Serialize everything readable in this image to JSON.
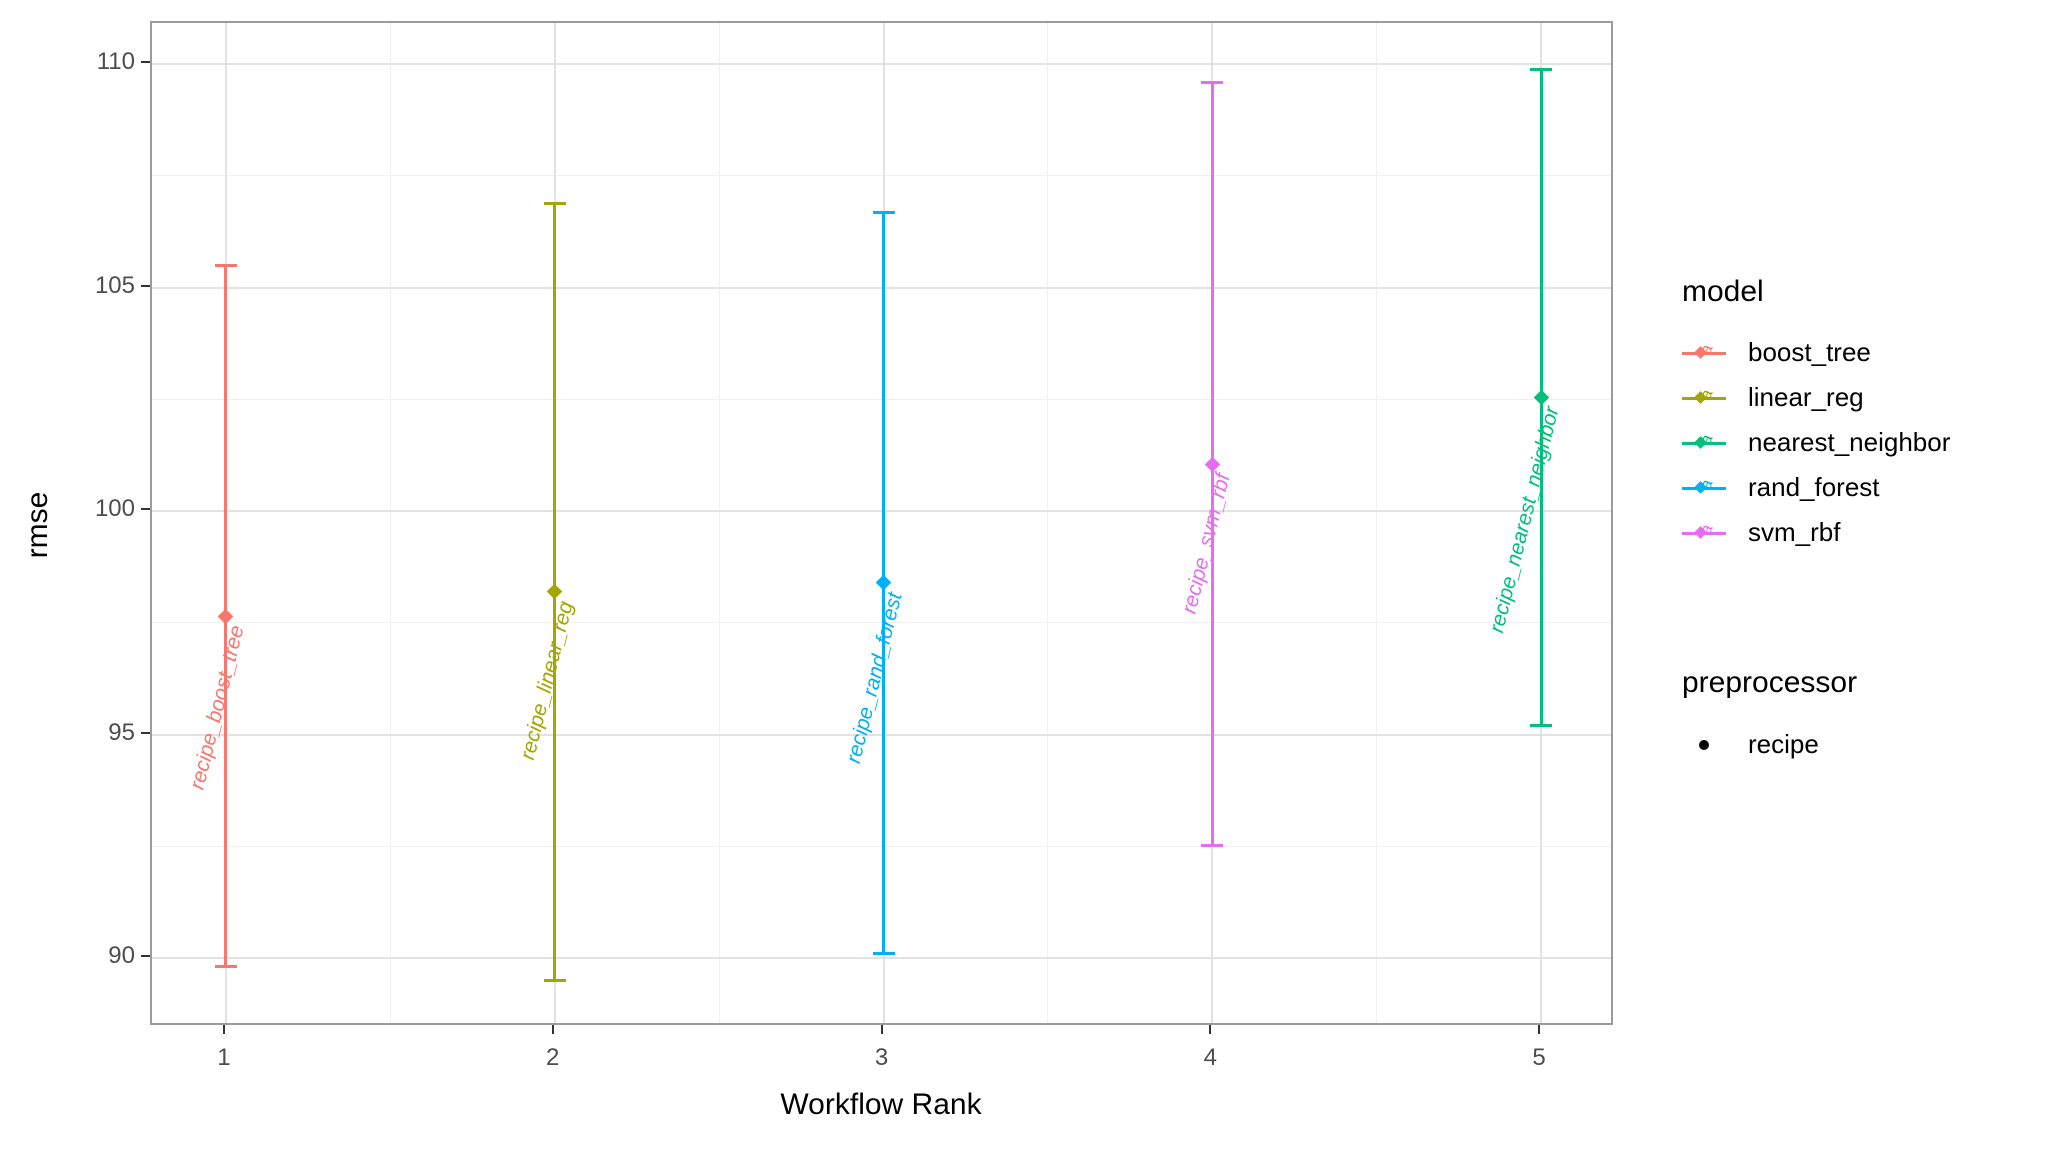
{
  "chart_data": {
    "type": "scatter",
    "subtype": "points-with-errorbars",
    "title": "",
    "xlabel": "Workflow Rank",
    "ylabel": "rmse",
    "xlim": [
      0.775,
      5.225
    ],
    "ylim": [
      88.46,
      110.92
    ],
    "grid": true,
    "legend_position": "right",
    "x_major_ticks": [
      1,
      2,
      3,
      4,
      5
    ],
    "y_major_ticks": [
      90,
      95,
      100,
      105,
      110
    ],
    "x_minor_gridlines": [
      1.5,
      2.5,
      3.5,
      4.5
    ],
    "y_minor_gridlines": [
      92.5,
      97.5,
      102.5,
      107.5
    ],
    "series": [
      {
        "rank": 1,
        "model": "boost_tree",
        "workflow_label": "recipe_boost_tree",
        "mean": 97.65,
        "lower": 89.8,
        "upper": 105.5,
        "color": "#F8766D"
      },
      {
        "rank": 2,
        "model": "linear_reg",
        "workflow_label": "recipe_linear_reg",
        "mean": 98.2,
        "lower": 89.5,
        "upper": 106.9,
        "color": "#A3A500"
      },
      {
        "rank": 3,
        "model": "rand_forest",
        "workflow_label": "recipe_rand_forest",
        "mean": 98.4,
        "lower": 90.1,
        "upper": 106.7,
        "color": "#00B0F6"
      },
      {
        "rank": 4,
        "model": "svm_rbf",
        "workflow_label": "recipe_svm_rbf",
        "mean": 101.05,
        "lower": 92.5,
        "upper": 109.6,
        "color": "#E76BF3"
      },
      {
        "rank": 5,
        "model": "nearest_neighbor",
        "workflow_label": "recipe_nearest_neighbor",
        "mean": 102.55,
        "lower": 95.2,
        "upper": 109.9,
        "color": "#00BF7D"
      }
    ]
  },
  "axes": {
    "x_title": "Workflow Rank",
    "y_title": "rmse",
    "x_tick_labels": [
      "1",
      "2",
      "3",
      "4",
      "5"
    ],
    "y_tick_labels": [
      "90",
      "95",
      "100",
      "105",
      "110"
    ]
  },
  "legend": {
    "model_title": "model",
    "model_items": [
      {
        "label": "boost_tree",
        "color": "#F8766D"
      },
      {
        "label": "linear_reg",
        "color": "#A3A500"
      },
      {
        "label": "nearest_neighbor",
        "color": "#00BF7D"
      },
      {
        "label": "rand_forest",
        "color": "#00B0F6"
      },
      {
        "label": "svm_rbf",
        "color": "#E76BF3"
      }
    ],
    "model_key_glyph_letter": "a",
    "preprocessor_title": "preprocessor",
    "preprocessor_items": [
      {
        "label": "recipe"
      }
    ]
  },
  "style_colors": {
    "panel_border": "#9b9b9b",
    "grid_major": "#e2e2e2",
    "grid_minor": "#f0f0f0",
    "tick_label": "#4d4d4d",
    "axis_title": "#000000"
  }
}
